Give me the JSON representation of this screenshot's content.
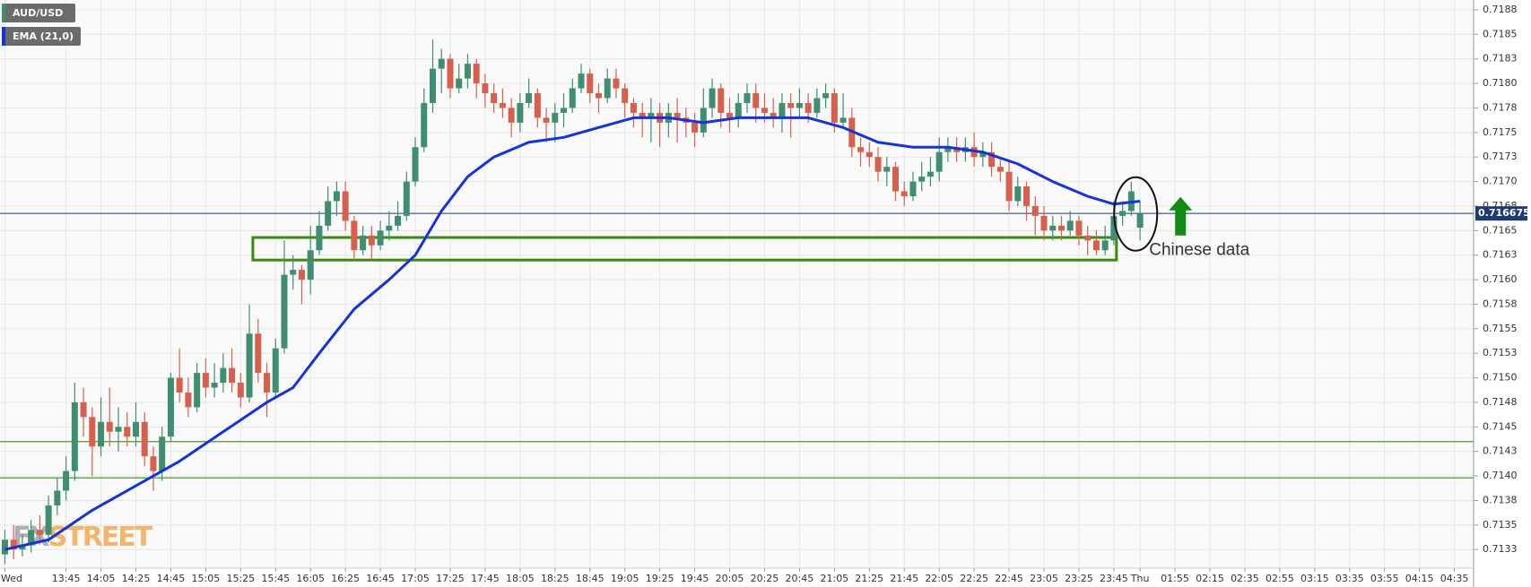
{
  "chart_data": {
    "type": "candlestick",
    "series": [
      {
        "name": "AUD/USD",
        "up_color": "#3f8e70",
        "down_color": "#d6604d",
        "open": [
          0.7132,
          0.71335,
          0.71325,
          0.7133,
          0.71345,
          0.7134,
          0.7137,
          0.71385,
          0.71405,
          0.71475,
          0.7146,
          0.7143,
          0.71455,
          0.71445,
          0.7145,
          0.7144,
          0.71455,
          0.7142,
          0.71405,
          0.7144,
          0.715,
          0.71485,
          0.7147,
          0.71505,
          0.7149,
          0.71495,
          0.7151,
          0.71495,
          0.7148,
          0.71545,
          0.71505,
          0.71485,
          0.7153,
          0.71605,
          0.7161,
          0.716,
          0.7163,
          0.71655,
          0.7168,
          0.7169,
          0.7166,
          0.7163,
          0.71645,
          0.71635,
          0.7165,
          0.71655,
          0.71665,
          0.717,
          0.71735,
          0.7178,
          0.71815,
          0.71825,
          0.71795,
          0.71805,
          0.7182,
          0.718,
          0.7179,
          0.7178,
          0.71775,
          0.7176,
          0.7178,
          0.7179,
          0.71765,
          0.7176,
          0.7177,
          0.71775,
          0.71795,
          0.7181,
          0.7179,
          0.71785,
          0.71805,
          0.71795,
          0.7178,
          0.7177,
          0.71765,
          0.7177,
          0.7176,
          0.7177,
          0.71765,
          0.7176,
          0.7175,
          0.71775,
          0.71795,
          0.7177,
          0.71765,
          0.7178,
          0.7179,
          0.71775,
          0.7177,
          0.71765,
          0.7178,
          0.71775,
          0.7178,
          0.7177,
          0.71785,
          0.7179,
          0.7176,
          0.71765,
          0.71735,
          0.7173,
          0.71725,
          0.7171,
          0.71715,
          0.7169,
          0.71685,
          0.717,
          0.71705,
          0.7171,
          0.7173,
          0.71735,
          0.7173,
          0.71735,
          0.71725,
          0.7173,
          0.71715,
          0.7171,
          0.7168,
          0.71695,
          0.71675,
          0.71665,
          0.7165,
          0.71655,
          0.7165,
          0.7166,
          0.71645,
          0.7164,
          0.7163,
          0.7164,
          0.71665,
          0.7167,
          0.71653
        ],
        "high": [
          0.71345,
          0.7135,
          0.7134,
          0.71355,
          0.7136,
          0.7138,
          0.71398,
          0.7142,
          0.71495,
          0.7149,
          0.7147,
          0.7148,
          0.7149,
          0.7147,
          0.71465,
          0.71475,
          0.71465,
          0.7143,
          0.7145,
          0.71505,
          0.7153,
          0.715,
          0.71515,
          0.7152,
          0.71515,
          0.71525,
          0.7153,
          0.71505,
          0.71575,
          0.7156,
          0.71515,
          0.7154,
          0.7164,
          0.71625,
          0.71615,
          0.71655,
          0.7167,
          0.71695,
          0.717,
          0.717,
          0.71665,
          0.71655,
          0.71655,
          0.7166,
          0.7167,
          0.7168,
          0.7171,
          0.71745,
          0.71795,
          0.71845,
          0.71835,
          0.7183,
          0.7182,
          0.7183,
          0.71825,
          0.7181,
          0.718,
          0.71795,
          0.71785,
          0.7179,
          0.71805,
          0.71795,
          0.71775,
          0.7178,
          0.7179,
          0.71805,
          0.7182,
          0.71815,
          0.718,
          0.71815,
          0.71815,
          0.718,
          0.71785,
          0.7178,
          0.71785,
          0.7178,
          0.7178,
          0.71785,
          0.71775,
          0.7177,
          0.71795,
          0.71805,
          0.718,
          0.71785,
          0.7179,
          0.718,
          0.718,
          0.7179,
          0.71785,
          0.7179,
          0.7179,
          0.71795,
          0.7179,
          0.71795,
          0.718,
          0.71795,
          0.7179,
          0.71775,
          0.71745,
          0.7174,
          0.71735,
          0.71725,
          0.7172,
          0.717,
          0.7171,
          0.7172,
          0.71725,
          0.71745,
          0.71745,
          0.71745,
          0.71745,
          0.7175,
          0.7174,
          0.7174,
          0.71725,
          0.7172,
          0.71705,
          0.717,
          0.71685,
          0.71675,
          0.71665,
          0.71665,
          0.7167,
          0.71665,
          0.71655,
          0.7165,
          0.71655,
          0.7168,
          0.7168,
          0.717,
          0.7168
        ],
        "low": [
          0.7131,
          0.71315,
          0.71318,
          0.71322,
          0.7133,
          0.71332,
          0.7136,
          0.71375,
          0.71395,
          0.7144,
          0.714,
          0.7142,
          0.7143,
          0.71425,
          0.7143,
          0.7143,
          0.7141,
          0.71385,
          0.71395,
          0.71435,
          0.71475,
          0.7146,
          0.71465,
          0.7148,
          0.7148,
          0.71485,
          0.71485,
          0.7147,
          0.71475,
          0.71495,
          0.7146,
          0.7148,
          0.71525,
          0.7159,
          0.71575,
          0.71585,
          0.71625,
          0.7165,
          0.71665,
          0.7165,
          0.7162,
          0.71625,
          0.7162,
          0.7163,
          0.7164,
          0.7165,
          0.7166,
          0.71695,
          0.7173,
          0.7177,
          0.7179,
          0.71785,
          0.7179,
          0.71795,
          0.71785,
          0.71775,
          0.7177,
          0.71765,
          0.71745,
          0.7175,
          0.71775,
          0.71755,
          0.7174,
          0.7174,
          0.71755,
          0.7177,
          0.7179,
          0.7178,
          0.7177,
          0.7178,
          0.71785,
          0.71765,
          0.71755,
          0.71745,
          0.7174,
          0.71735,
          0.71745,
          0.7174,
          0.71745,
          0.71735,
          0.71745,
          0.71765,
          0.71755,
          0.7175,
          0.71755,
          0.7177,
          0.7176,
          0.7176,
          0.71755,
          0.7175,
          0.71745,
          0.71765,
          0.7176,
          0.71765,
          0.71775,
          0.7175,
          0.71755,
          0.71725,
          0.71715,
          0.71715,
          0.717,
          0.71695,
          0.7168,
          0.71675,
          0.7168,
          0.7169,
          0.71695,
          0.717,
          0.7172,
          0.7172,
          0.7172,
          0.71715,
          0.71715,
          0.71705,
          0.717,
          0.7167,
          0.71675,
          0.7166,
          0.71645,
          0.7164,
          0.7164,
          0.7164,
          0.71645,
          0.71635,
          0.71625,
          0.71625,
          0.71625,
          0.71635,
          0.71655,
          0.71665,
          0.7164
        ],
        "close": [
          0.71335,
          0.71325,
          0.7133,
          0.71345,
          0.7134,
          0.7137,
          0.71385,
          0.71405,
          0.71475,
          0.7146,
          0.7143,
          0.71455,
          0.71445,
          0.7145,
          0.7144,
          0.71455,
          0.7142,
          0.71405,
          0.7144,
          0.715,
          0.71485,
          0.7147,
          0.71505,
          0.7149,
          0.71495,
          0.7151,
          0.71495,
          0.7148,
          0.71545,
          0.71505,
          0.71485,
          0.7153,
          0.71605,
          0.7161,
          0.716,
          0.7163,
          0.71655,
          0.7168,
          0.7169,
          0.7166,
          0.7163,
          0.71645,
          0.71635,
          0.7165,
          0.71655,
          0.71665,
          0.717,
          0.71735,
          0.7178,
          0.71815,
          0.71825,
          0.71795,
          0.71805,
          0.7182,
          0.718,
          0.7179,
          0.7178,
          0.71775,
          0.7176,
          0.7178,
          0.7179,
          0.71765,
          0.7176,
          0.7177,
          0.71775,
          0.71795,
          0.7181,
          0.7179,
          0.71785,
          0.71805,
          0.71795,
          0.7178,
          0.7177,
          0.71765,
          0.7177,
          0.7176,
          0.7177,
          0.71765,
          0.7176,
          0.7175,
          0.71775,
          0.71795,
          0.7177,
          0.71765,
          0.7178,
          0.7179,
          0.71775,
          0.7177,
          0.71765,
          0.7178,
          0.71775,
          0.7178,
          0.7177,
          0.71785,
          0.7179,
          0.7176,
          0.71765,
          0.71735,
          0.7173,
          0.71725,
          0.7171,
          0.71715,
          0.7169,
          0.71685,
          0.717,
          0.71705,
          0.7171,
          0.7173,
          0.71735,
          0.7173,
          0.71735,
          0.71725,
          0.7173,
          0.71715,
          0.7171,
          0.7168,
          0.71695,
          0.71675,
          0.71665,
          0.7165,
          0.71655,
          0.7165,
          0.7166,
          0.71645,
          0.7164,
          0.7163,
          0.7164,
          0.71665,
          0.7167,
          0.7169,
          0.71667
        ]
      },
      {
        "name": "EMA (21,0)",
        "type": "line",
        "color": "#1533d6",
        "x": [
          0,
          5,
          10,
          15,
          20,
          25,
          30,
          33,
          36,
          40,
          44,
          47,
          50,
          53,
          56,
          60,
          64,
          68,
          72,
          76,
          80,
          84,
          88,
          92,
          96,
          100,
          104,
          108,
          112,
          116,
          120,
          124,
          127,
          130
        ],
        "values": [
          0.71325,
          0.71335,
          0.71365,
          0.7139,
          0.71415,
          0.71445,
          0.71475,
          0.7149,
          0.71525,
          0.7157,
          0.716,
          0.71625,
          0.7167,
          0.71705,
          0.71725,
          0.7174,
          0.71745,
          0.71755,
          0.71765,
          0.71765,
          0.7176,
          0.71765,
          0.71765,
          0.71765,
          0.71755,
          0.7174,
          0.71735,
          0.71735,
          0.7173,
          0.71718,
          0.717,
          0.71685,
          0.71677,
          0.7168
        ]
      }
    ],
    "xlim": [
      -0.56,
      168.2
    ],
    "xticks": [
      {
        "value": 0,
        "label": "Wed"
      },
      {
        "value": 7,
        "label": "13:45"
      },
      {
        "value": 11,
        "label": "14:05"
      },
      {
        "value": 15,
        "label": "14:25"
      },
      {
        "value": 19,
        "label": "14:45"
      },
      {
        "value": 23,
        "label": "15:05"
      },
      {
        "value": 27,
        "label": "15:25"
      },
      {
        "value": 31,
        "label": "15:45"
      },
      {
        "value": 35,
        "label": "16:05"
      },
      {
        "value": 39,
        "label": "16:25"
      },
      {
        "value": 43,
        "label": "16:45"
      },
      {
        "value": 47,
        "label": "17:05"
      },
      {
        "value": 51,
        "label": "17:25"
      },
      {
        "value": 55,
        "label": "17:45"
      },
      {
        "value": 59,
        "label": "18:05"
      },
      {
        "value": 63,
        "label": "18:25"
      },
      {
        "value": 67,
        "label": "18:45"
      },
      {
        "value": 71,
        "label": "19:05"
      },
      {
        "value": 75,
        "label": "19:25"
      },
      {
        "value": 79,
        "label": "19:45"
      },
      {
        "value": 83,
        "label": "20:05"
      },
      {
        "value": 87,
        "label": "20:25"
      },
      {
        "value": 91,
        "label": "20:45"
      },
      {
        "value": 95,
        "label": "21:05"
      },
      {
        "value": 99,
        "label": "21:25"
      },
      {
        "value": 103,
        "label": "21:45"
      },
      {
        "value": 107,
        "label": "22:05"
      },
      {
        "value": 111,
        "label": "22:25"
      },
      {
        "value": 115,
        "label": "22:45"
      },
      {
        "value": 119,
        "label": "23:05"
      },
      {
        "value": 123,
        "label": "23:25"
      },
      {
        "value": 127,
        "label": "23:45"
      },
      {
        "value": 130,
        "label": "Thu"
      },
      {
        "value": 134,
        "label": "01:55"
      },
      {
        "value": 138,
        "label": "02:15"
      },
      {
        "value": 142,
        "label": "02:35"
      },
      {
        "value": 146,
        "label": "02:55"
      },
      {
        "value": 150,
        "label": "03:15"
      },
      {
        "value": 154,
        "label": "03:35"
      },
      {
        "value": 158,
        "label": "03:55"
      },
      {
        "value": 162,
        "label": "04:15"
      },
      {
        "value": 166,
        "label": "04:35"
      }
    ],
    "ylim": [
      0.71306,
      0.71885
    ],
    "yticks": [
      {
        "value": 0.71875,
        "label": "0.7188"
      },
      0.7185,
      {
        "value": 0.71825,
        "label": "0.7183"
      },
      {
        "value": 0.718,
        "label": "0.7180"
      },
      {
        "value": 0.71775,
        "label": "0.7178"
      },
      0.7175,
      {
        "value": 0.71725,
        "label": "0.7173"
      },
      {
        "value": 0.717,
        "label": "0.7170"
      },
      {
        "value": 0.71675,
        "label": "0.7168"
      },
      0.7165,
      {
        "value": 0.71625,
        "label": "0.7163"
      },
      {
        "value": 0.716,
        "label": "0.7160"
      },
      {
        "value": 0.71575,
        "label": "0.7158"
      },
      0.7155,
      {
        "value": 0.71525,
        "label": "0.7153"
      },
      {
        "value": 0.715,
        "label": "0.7150"
      },
      {
        "value": 0.71475,
        "label": "0.7148"
      },
      0.7145,
      {
        "value": 0.71425,
        "label": "0.7143"
      },
      {
        "value": 0.714,
        "label": "0.7140"
      },
      {
        "value": 0.71375,
        "label": "0.7138"
      },
      0.7135,
      {
        "value": 0.71325,
        "label": "0.7133"
      }
    ],
    "grid": true,
    "legend": "top-left",
    "last_price": {
      "value": 0.716675,
      "color": "#1e3a6e"
    },
    "levels": {
      "values": [
        0.71435,
        0.71398
      ],
      "color": "#4a9a2a"
    },
    "zone": {
      "from": 0.7162,
      "to": 0.71643,
      "start": 28.4,
      "end": 127.3,
      "color": "#3a8a10"
    },
    "annotation": "Chinese data",
    "watermark": [
      "FX",
      "STREET"
    ]
  }
}
